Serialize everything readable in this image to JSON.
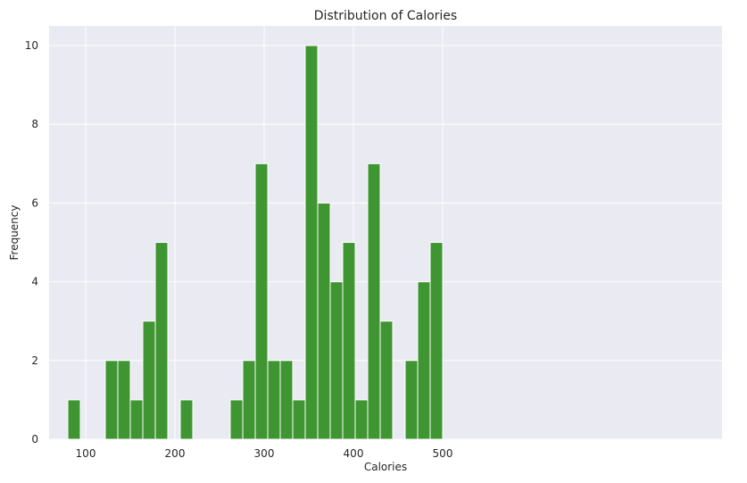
{
  "chart_data": {
    "type": "bar",
    "title": "Distribution of Calories",
    "xlabel": "Calories",
    "ylabel": "Frequency",
    "bin_width": 14,
    "bin_starts": [
      80,
      94,
      108,
      122,
      136,
      150,
      164,
      178,
      192,
      206,
      220,
      234,
      248,
      262,
      276,
      290,
      304,
      318,
      332,
      346,
      360,
      374,
      388,
      402,
      416,
      430,
      444,
      458,
      472,
      486
    ],
    "counts": [
      1,
      0,
      0,
      2,
      2,
      1,
      3,
      5,
      0,
      1,
      0,
      0,
      0,
      1,
      2,
      7,
      2,
      2,
      1,
      10,
      6,
      4,
      5,
      1,
      7,
      3,
      0,
      2,
      4,
      5
    ],
    "xlim": [
      59,
      813
    ],
    "ylim": [
      0,
      10.5
    ],
    "xticks": [
      100,
      200,
      300,
      400,
      500
    ],
    "yticks": [
      0,
      2,
      4,
      6,
      8,
      10
    ],
    "bar_color": "#2b8c1c",
    "background_color": "#eaeaf2",
    "grid": true
  }
}
